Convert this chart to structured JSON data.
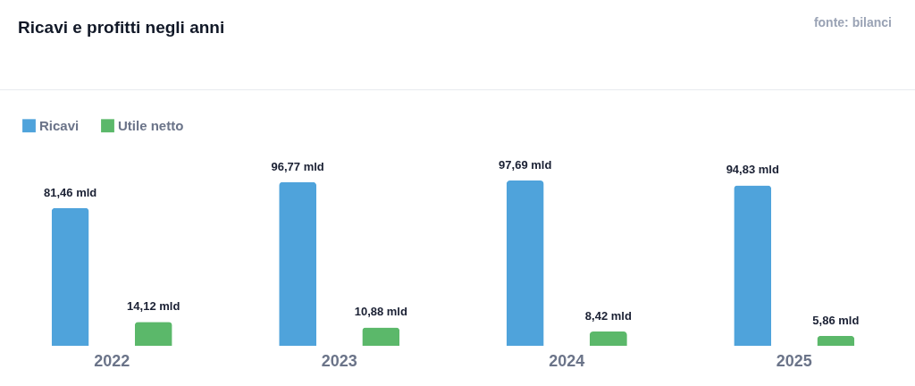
{
  "chart_data": {
    "type": "bar",
    "title": "Ricavi e profitti negli anni",
    "annotations": [
      "fonte: bilanci"
    ],
    "categories": [
      "2022",
      "2023",
      "2024",
      "2025"
    ],
    "series": [
      {
        "name": "Ricavi",
        "color": "#4fa3db",
        "values": [
          81.46,
          96.77,
          97.69,
          94.83
        ],
        "value_labels": [
          "81,46 mld",
          "96,77 mld",
          "97,69 mld",
          "94,83 mld"
        ]
      },
      {
        "name": "Utile netto",
        "color": "#5bb86a",
        "values": [
          14.12,
          10.88,
          8.42,
          5.86
        ],
        "value_labels": [
          "14,12 mld",
          "10,88 mld",
          "8,42 mld",
          "5,86 mld"
        ]
      }
    ],
    "legend": "top left"
  }
}
